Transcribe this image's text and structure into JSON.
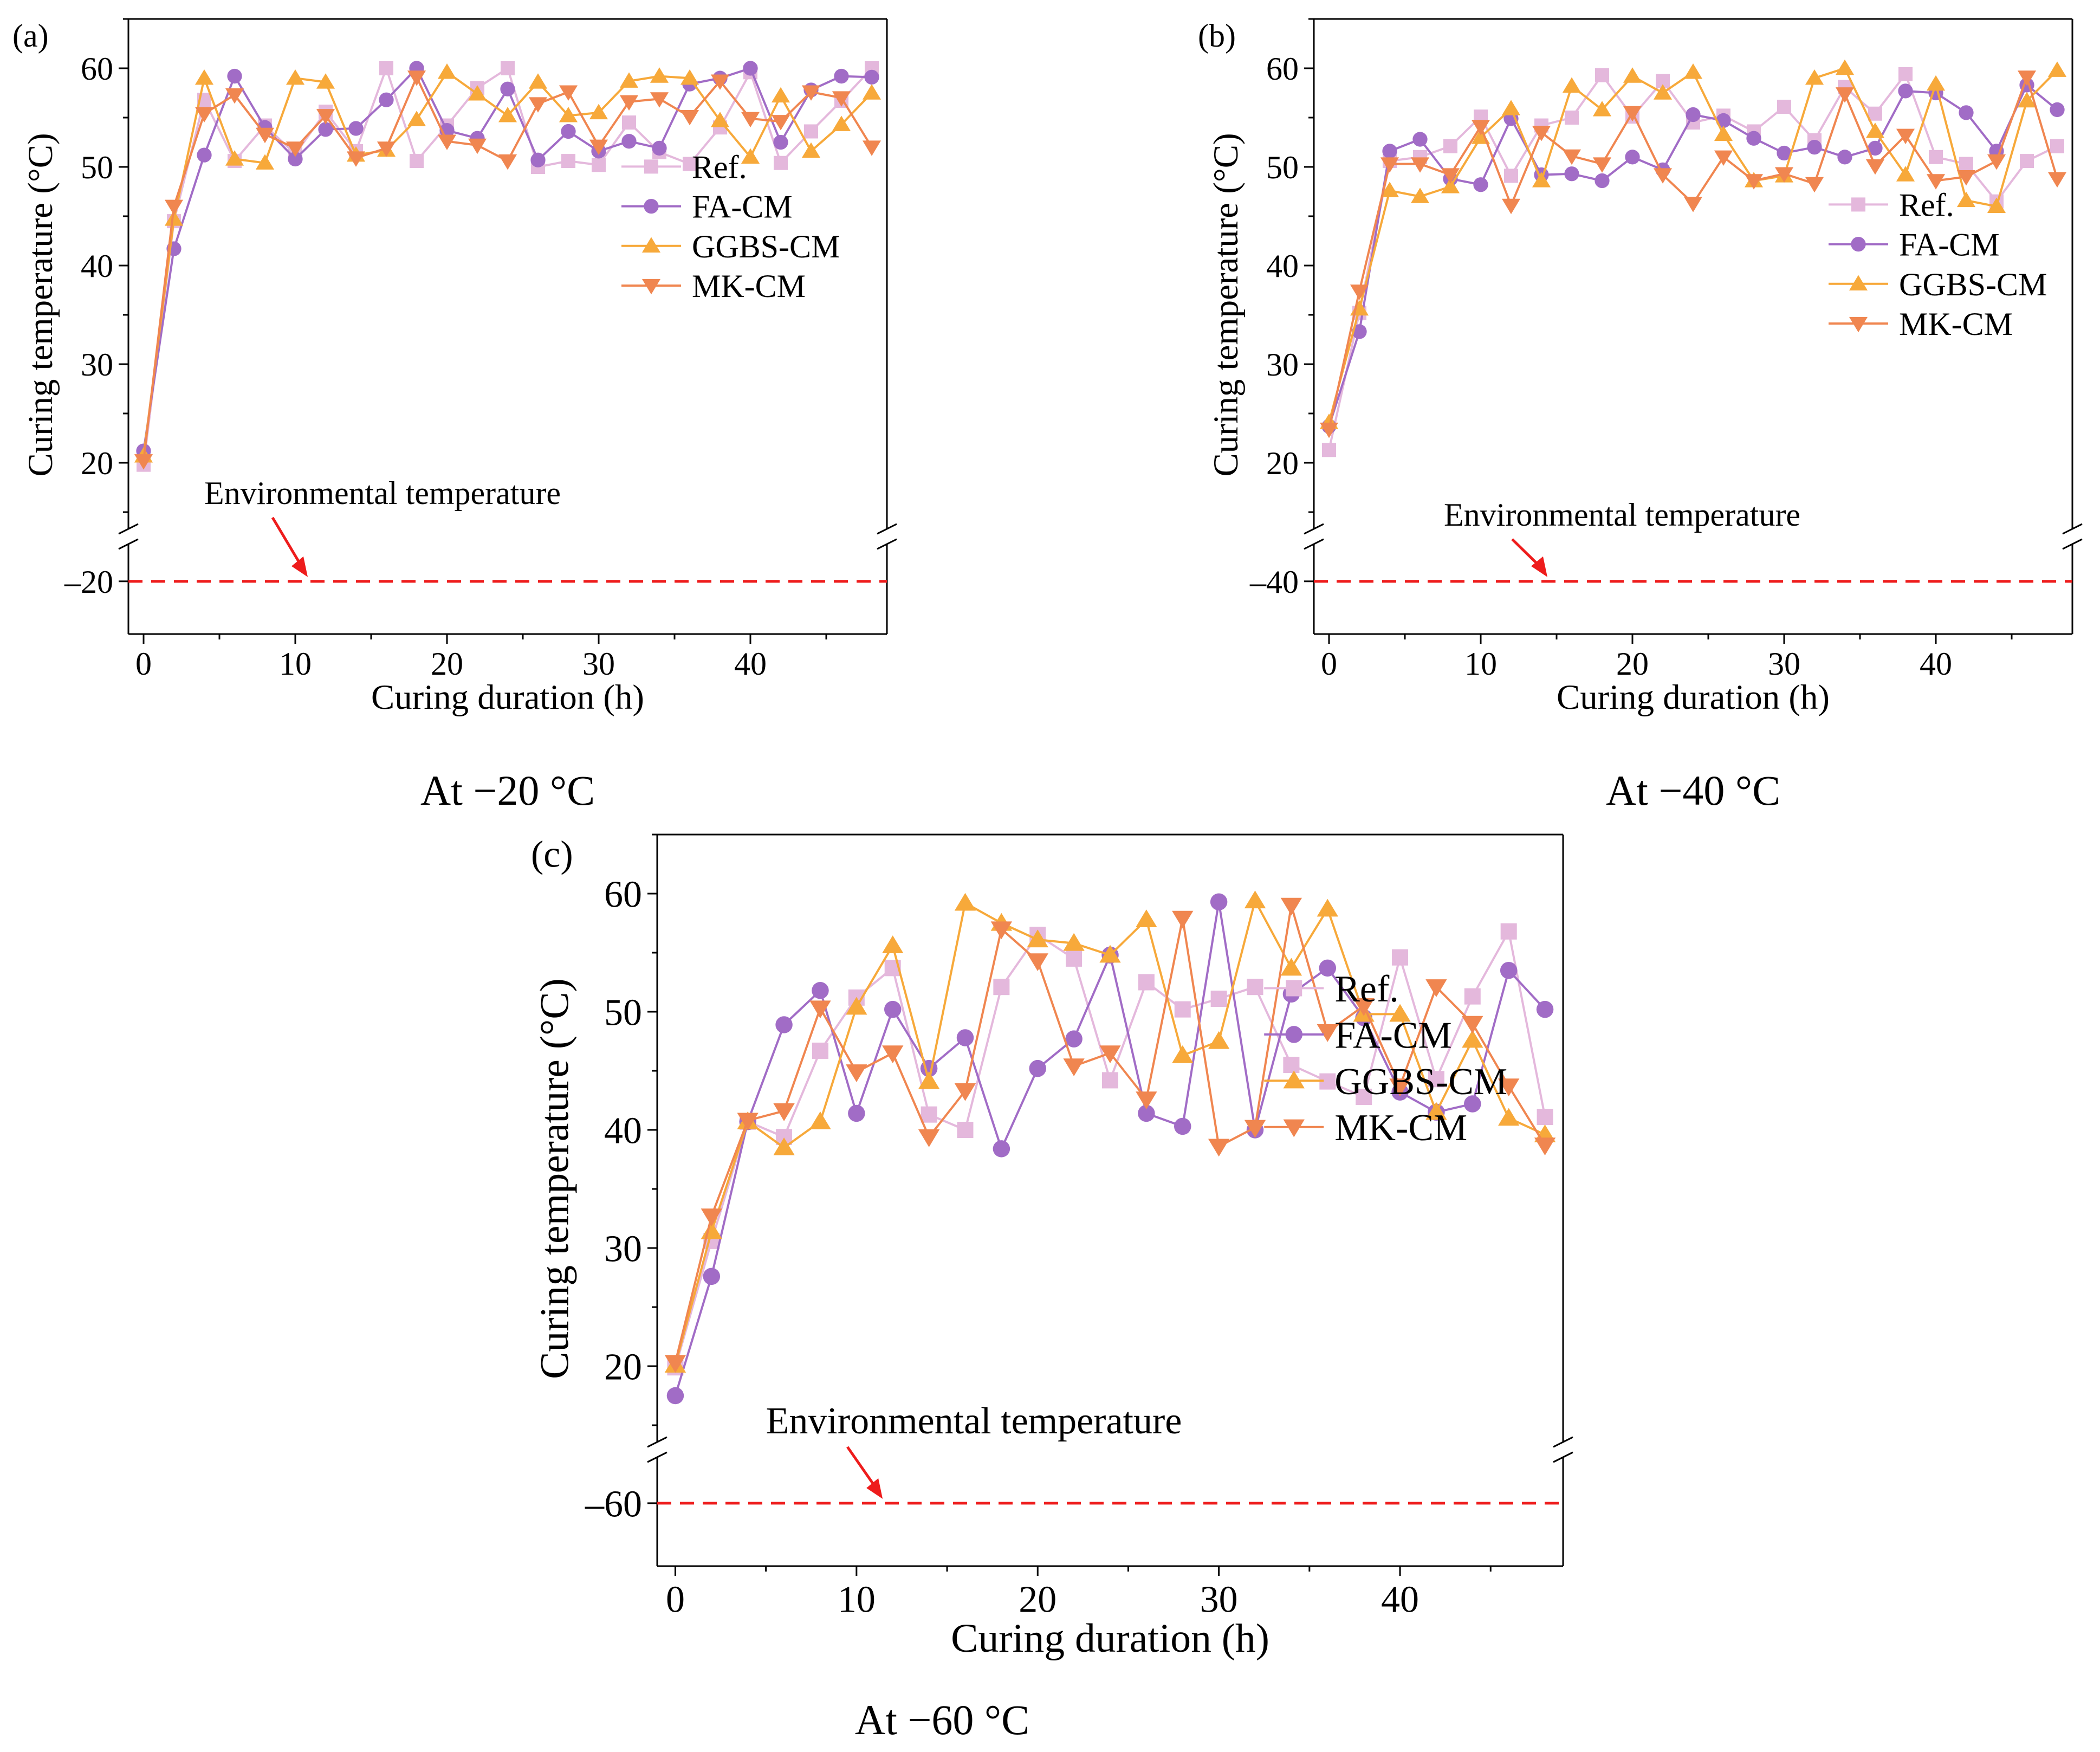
{
  "figure": {
    "colors": {
      "ref": "#E4B8DC",
      "fa": "#A16CC6",
      "ggbs": "#F7A93A",
      "mk": "#F08650",
      "env": "#EE1C1C",
      "axis": "#000000"
    },
    "y_label": "Curing temperature (°C)",
    "x_label": "Curing duration (h)",
    "env_label": "Environmental temperature",
    "legend": [
      "Ref.",
      "FA-CM",
      "GGBS-CM",
      "MK-CM"
    ],
    "x_ticks": [
      "0",
      "10",
      "20",
      "30",
      "40"
    ],
    "y_ticks": [
      "20",
      "30",
      "40",
      "50",
      "60"
    ]
  },
  "chart_data": [
    {
      "type": "line",
      "panel_label": "(a)",
      "caption": "At −20 °C",
      "env_value": -20,
      "env_tick": "–20",
      "xlabel": "Curing duration (h)",
      "ylabel": "Curing temperature (°C)",
      "xlim": [
        -1,
        49
      ],
      "ylim_upper": [
        15,
        65
      ],
      "y_break": true,
      "x": [
        0,
        2,
        4,
        6,
        8,
        10,
        12,
        14,
        16,
        18,
        20,
        22,
        24,
        26,
        28,
        30,
        32,
        34,
        36,
        38,
        40,
        42,
        44,
        46,
        48
      ],
      "series": [
        {
          "name": "Ref.",
          "marker": "square",
          "values": [
            19.8,
            44.5,
            56.8,
            50.6,
            54.2,
            51.3,
            55.6,
            51.6,
            60.0,
            50.6,
            54.2,
            58.0,
            60.0,
            50.0,
            50.6,
            50.2,
            54.5,
            51.5,
            50.3,
            54.0,
            59.6,
            50.4,
            53.6,
            56.7,
            60.0
          ]
        },
        {
          "name": "FA-CM",
          "marker": "circle",
          "values": [
            21.2,
            41.7,
            51.2,
            59.2,
            54.0,
            50.8,
            53.8,
            53.9,
            56.8,
            60.0,
            53.7,
            52.9,
            57.9,
            50.7,
            53.6,
            51.6,
            52.6,
            51.9,
            58.4,
            59.0,
            60.0,
            52.5,
            57.8,
            59.2,
            59.1
          ]
        },
        {
          "name": "GGBS-CM",
          "marker": "triangle-up",
          "values": [
            20.7,
            44.7,
            59.0,
            50.8,
            50.4,
            59.0,
            58.6,
            51.2,
            51.7,
            54.8,
            59.6,
            57.4,
            55.2,
            58.6,
            55.2,
            55.5,
            58.7,
            59.2,
            59.0,
            54.7,
            51.0,
            57.2,
            51.6,
            54.3,
            57.5
          ]
        },
        {
          "name": "MK-CM",
          "marker": "triangle-down",
          "values": [
            20.2,
            46.0,
            55.4,
            57.3,
            53.3,
            51.9,
            55.2,
            50.9,
            51.9,
            59.1,
            52.6,
            52.2,
            50.6,
            56.4,
            57.6,
            52.1,
            56.6,
            56.9,
            55.1,
            58.7,
            54.9,
            54.6,
            57.6,
            57.0,
            52.0
          ]
        }
      ]
    },
    {
      "type": "line",
      "panel_label": "(b)",
      "caption": "At −40 °C",
      "env_value": -40,
      "env_tick": "–40",
      "xlabel": "Curing duration (h)",
      "ylabel": "Curing temperature (°C)",
      "xlim": [
        -1,
        49
      ],
      "ylim_upper": [
        15,
        65
      ],
      "y_break": true,
      "x": [
        0,
        2,
        4,
        6,
        8,
        10,
        12,
        14,
        16,
        18,
        20,
        22,
        24,
        26,
        28,
        30,
        32,
        34,
        36,
        38,
        40,
        42,
        44,
        46,
        48
      ],
      "series": [
        {
          "name": "Ref.",
          "marker": "square",
          "values": [
            21.3,
            35.2,
            50.6,
            51.0,
            52.1,
            55.1,
            49.1,
            54.2,
            55.0,
            59.3,
            55.1,
            58.7,
            54.5,
            55.2,
            53.6,
            56.1,
            52.7,
            58.1,
            55.4,
            59.4,
            51.0,
            50.3,
            46.5,
            50.6,
            52.1
          ]
        },
        {
          "name": "FA-CM",
          "marker": "circle",
          "values": [
            23.7,
            33.3,
            51.6,
            52.8,
            48.8,
            48.2,
            54.9,
            49.2,
            49.3,
            48.6,
            51.0,
            49.7,
            55.3,
            54.7,
            52.9,
            51.4,
            52.0,
            51.0,
            51.9,
            57.7,
            57.5,
            55.5,
            51.6,
            58.3,
            55.8
          ]
        },
        {
          "name": "GGBS-CM",
          "marker": "triangle-up",
          "values": [
            24.1,
            35.6,
            47.6,
            47.0,
            48.0,
            53.0,
            55.9,
            48.6,
            58.2,
            55.8,
            59.2,
            57.5,
            59.6,
            53.3,
            48.6,
            49.1,
            59.0,
            60.0,
            53.6,
            49.2,
            58.4,
            46.6,
            46.0,
            56.7,
            59.8
          ]
        },
        {
          "name": "MK-CM",
          "marker": "triangle-down",
          "values": [
            23.4,
            37.4,
            50.3,
            50.3,
            49.2,
            54.1,
            46.1,
            53.5,
            51.1,
            50.3,
            55.5,
            49.2,
            46.3,
            51.0,
            48.6,
            49.3,
            48.3,
            57.4,
            50.1,
            53.2,
            48.6,
            49.0,
            50.6,
            59.1,
            48.8
          ]
        }
      ]
    },
    {
      "type": "line",
      "panel_label": "(c)",
      "caption": "At −60 °C",
      "env_value": -60,
      "env_tick": "–60",
      "xlabel": "Curing duration (h)",
      "ylabel": "Curing temperature (°C)",
      "xlim": [
        -1,
        49
      ],
      "ylim_upper": [
        15,
        65
      ],
      "y_break": true,
      "x": [
        0,
        2,
        4,
        6,
        8,
        10,
        12,
        14,
        16,
        18,
        20,
        22,
        24,
        26,
        28,
        30,
        32,
        34,
        36,
        38,
        40,
        42,
        44,
        46,
        48
      ],
      "series": [
        {
          "name": "Ref.",
          "marker": "square",
          "values": [
            19.9,
            30.6,
            40.7,
            39.4,
            46.7,
            51.2,
            53.7,
            41.3,
            40.0,
            52.1,
            56.5,
            54.5,
            44.2,
            52.5,
            50.2,
            51.1,
            52.1,
            45.5,
            44.1,
            42.8,
            54.6,
            44.3,
            51.3,
            56.8,
            41.1
          ]
        },
        {
          "name": "FA-CM",
          "marker": "circle",
          "values": [
            17.5,
            27.6,
            40.7,
            48.9,
            51.8,
            41.4,
            50.2,
            45.2,
            47.8,
            38.4,
            45.2,
            47.7,
            54.8,
            41.4,
            40.3,
            59.3,
            40.0,
            51.5,
            53.7,
            49.5,
            43.2,
            41.5,
            42.2,
            53.5,
            50.2
          ]
        },
        {
          "name": "GGBS-CM",
          "marker": "triangle-up",
          "values": [
            20.1,
            31.4,
            40.7,
            38.5,
            40.7,
            50.4,
            55.6,
            44.1,
            59.2,
            57.5,
            56.1,
            55.8,
            54.8,
            57.8,
            46.3,
            47.5,
            59.4,
            53.7,
            58.7,
            49.8,
            49.8,
            41.5,
            47.6,
            41.0,
            39.6
          ]
        },
        {
          "name": "MK-CM",
          "marker": "triangle-down",
          "values": [
            20.3,
            32.7,
            40.8,
            41.6,
            50.3,
            44.9,
            46.5,
            39.4,
            43.3,
            57.0,
            54.3,
            45.4,
            46.5,
            42.6,
            57.9,
            38.6,
            40.2,
            59.0,
            48.3,
            50.5,
            43.7,
            52.1,
            49.0,
            43.7,
            38.7
          ]
        }
      ]
    }
  ]
}
